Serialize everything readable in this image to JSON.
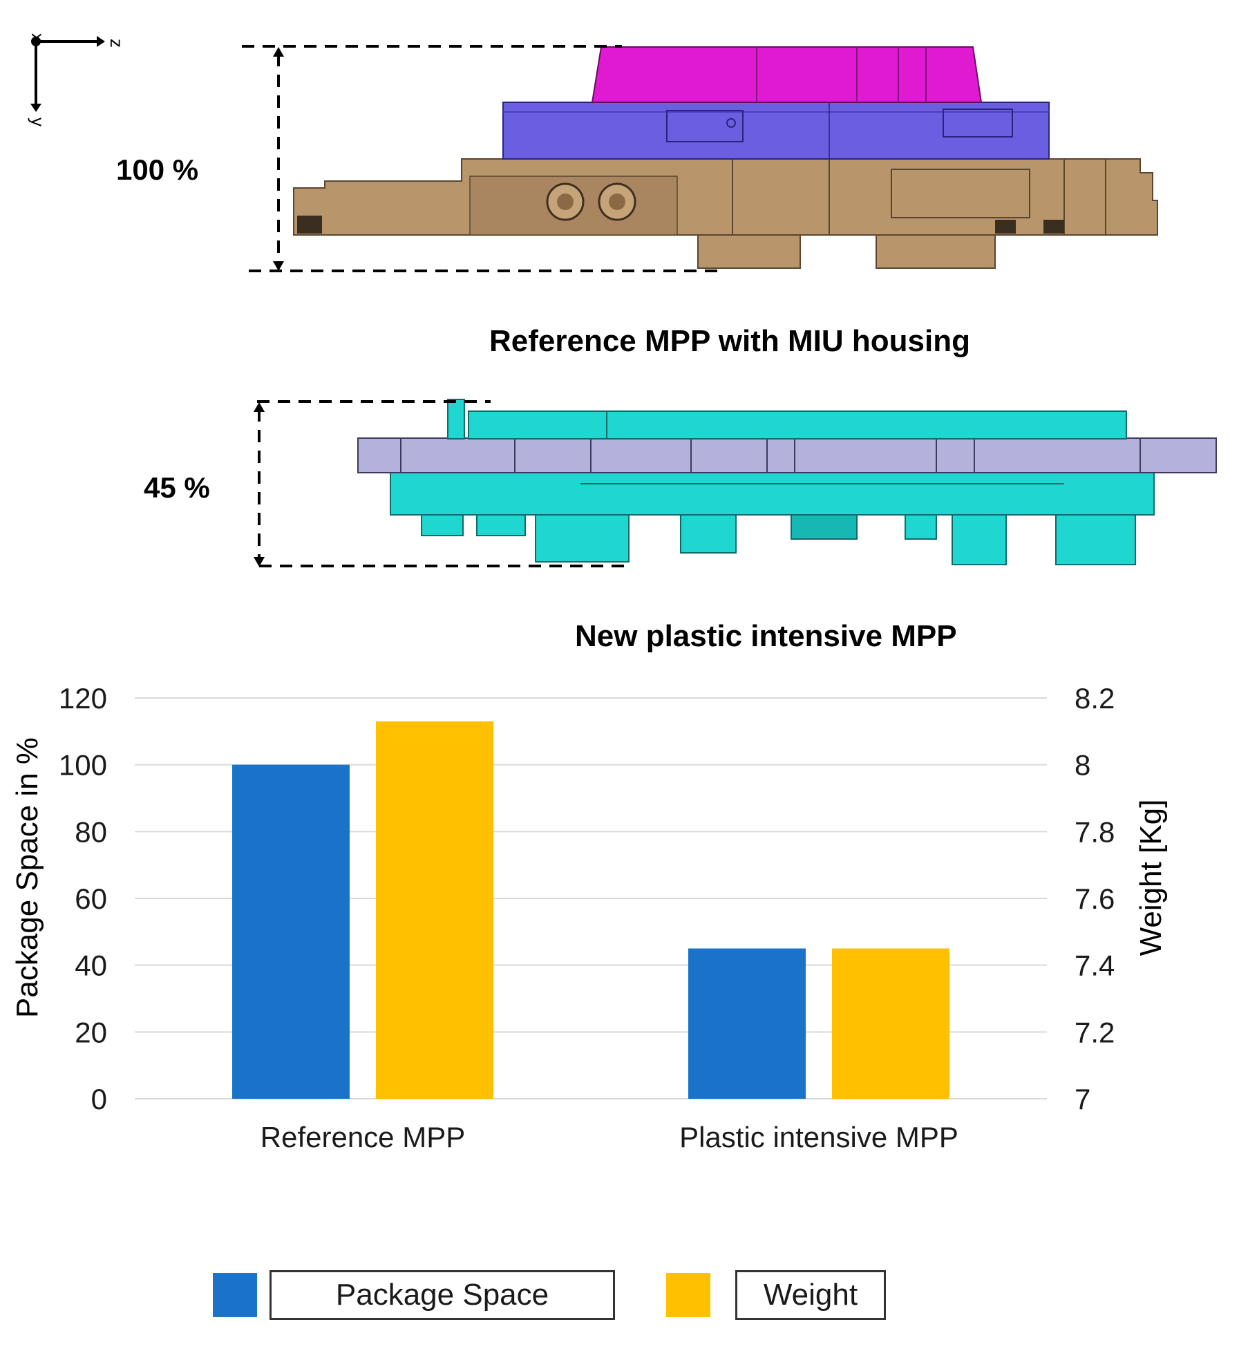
{
  "diagram": {
    "axis_x_label": "x",
    "axis_z_label": "z",
    "axis_y_label": "y",
    "reference_percent": "100 %",
    "reference_caption": "Reference MPP with MIU housing",
    "new_percent": "45 %",
    "new_caption": "New plastic intensive MPP"
  },
  "colors": {
    "package_space": "#1a73c8",
    "weight": "#ffc000",
    "magenta": "#e01ad0",
    "purple": "#6a5fe0",
    "bronze": "#b8956a",
    "teal": "#1fd6d0",
    "lavender": "#b4b2dc"
  },
  "chart_data": {
    "type": "bar",
    "categories": [
      "Reference MPP",
      "Plastic intensive MPP"
    ],
    "series": [
      {
        "name": "Package Space",
        "axis": "left",
        "values": [
          100,
          45
        ]
      },
      {
        "name": "Weight",
        "axis": "right",
        "values": [
          8.13,
          7.45
        ]
      }
    ],
    "ylabel": "Package Space in %",
    "ylabel_right": "Weight [Kg]",
    "ylim": [
      0,
      120
    ],
    "ylim_right": [
      7,
      8.2
    ],
    "yticks": [
      "0",
      "20",
      "40",
      "60",
      "80",
      "100",
      "120"
    ],
    "yticks_right": [
      "7",
      "7.2",
      "7.4",
      "7.6",
      "7.8",
      "8",
      "8.2"
    ],
    "grid": true,
    "legend": [
      "Package Space",
      "Weight"
    ],
    "legend_position": "bottom"
  }
}
